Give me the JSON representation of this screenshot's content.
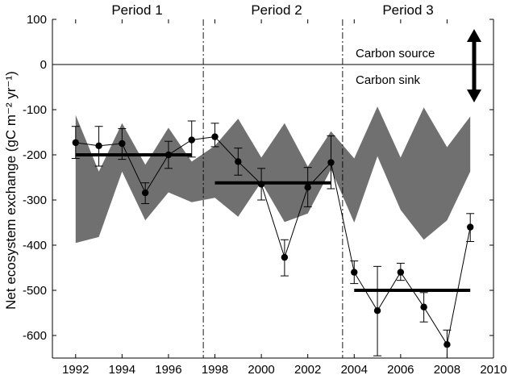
{
  "chart_data": {
    "type": "line",
    "xlabel": "",
    "ylabel": "Net ecosystem exchange (gC m⁻² yr⁻¹)",
    "xlim": [
      1991,
      2010
    ],
    "ylim": [
      -650,
      100
    ],
    "x_ticks": [
      1992,
      1994,
      1996,
      1998,
      2000,
      2002,
      2004,
      2006,
      2008,
      2010
    ],
    "y_ticks": [
      100,
      0,
      -100,
      -200,
      -300,
      -400,
      -500,
      -600
    ],
    "grid": false,
    "zero_line": 0,
    "periods": [
      {
        "label": "Period 1",
        "start": 1991,
        "end": 1997.5
      },
      {
        "label": "Period 2",
        "start": 1997.5,
        "end": 2003.5
      },
      {
        "label": "Period 3",
        "start": 2003.5,
        "end": 2010
      }
    ],
    "period_boundaries": [
      1997.5,
      2003.5
    ],
    "annotations": {
      "source": "Carbon source",
      "sink": "Carbon sink"
    },
    "observed": {
      "x": [
        1992,
        1993,
        1994,
        1995,
        1996,
        1997,
        1998,
        1999,
        2000,
        2001,
        2002,
        2003,
        2004,
        2005,
        2006,
        2007,
        2008,
        2009
      ],
      "y": [
        -173,
        -180,
        -175,
        -284,
        -200,
        -167,
        -160,
        -215,
        -265,
        -427,
        -272,
        -217,
        -460,
        -545,
        -460,
        -537,
        -620,
        -360
      ],
      "err_low": [
        -208,
        -225,
        -210,
        -308,
        -230,
        -205,
        -182,
        -245,
        -300,
        -468,
        -315,
        -275,
        -485,
        -645,
        -478,
        -570,
        -650,
        -392
      ],
      "err_high": [
        -137,
        -137,
        -142,
        -262,
        -170,
        -125,
        -130,
        -185,
        -230,
        -388,
        -228,
        -158,
        -435,
        -447,
        -440,
        -505,
        -588,
        -330
      ]
    },
    "period_means": [
      {
        "start": 1992,
        "end": 1997,
        "value": -200
      },
      {
        "start": 1998,
        "end": 2003,
        "value": -262
      },
      {
        "start": 2004,
        "end": 2009,
        "value": -500
      }
    ],
    "model_band": {
      "x": [
        1992,
        1993,
        1994,
        1995,
        1996,
        1997,
        1998,
        1999,
        2000,
        2001,
        2002,
        2003,
        2004,
        2005,
        2006,
        2007,
        2008,
        2009
      ],
      "upper": [
        -112,
        -237,
        -130,
        -222,
        -140,
        -215,
        -180,
        -120,
        -206,
        -130,
        -226,
        -148,
        -208,
        -93,
        -206,
        -95,
        -183,
        -115
      ],
      "lower": [
        -395,
        -382,
        -237,
        -345,
        -283,
        -305,
        -295,
        -337,
        -260,
        -349,
        -330,
        -232,
        -350,
        -203,
        -322,
        -388,
        -345,
        -237
      ]
    },
    "colors": {
      "band": "#707070",
      "line": "#000000",
      "mean": "#000000"
    }
  }
}
